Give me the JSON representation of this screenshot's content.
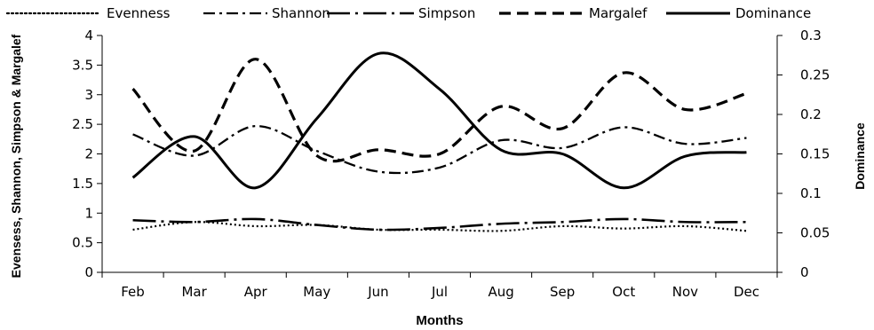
{
  "chart_data": {
    "type": "line",
    "xlabel": "Months",
    "ylabel_left": "Evensess, Shannon, Simpson & Margalef",
    "ylabel_right": "Dominance",
    "categories": [
      "Feb",
      "Mar",
      "Apr",
      "May",
      "Jun",
      "Jul",
      "Aug",
      "Sep",
      "Oct",
      "Nov",
      "Dec"
    ],
    "ylim_left": [
      0,
      4
    ],
    "ylim_right": [
      0,
      0.3
    ],
    "yticks_left": [
      "0",
      "0.5",
      "1",
      "1.5",
      "2",
      "2.5",
      "3",
      "3.5",
      "4"
    ],
    "yticks_right": [
      "0",
      "0.05",
      "0.1",
      "0.15",
      "0.2",
      "0.25",
      "0.3"
    ],
    "grid": false,
    "legend_position": "top",
    "series": [
      {
        "name": "Evenness",
        "axis": "left",
        "style": "dotted",
        "values": [
          0.72,
          0.85,
          0.78,
          0.8,
          0.72,
          0.72,
          0.7,
          0.78,
          0.74,
          0.78,
          0.7
        ]
      },
      {
        "name": "Shannon",
        "axis": "left",
        "style": "dash-dot",
        "values": [
          2.33,
          1.97,
          2.47,
          2.05,
          1.7,
          1.77,
          2.23,
          2.1,
          2.45,
          2.17,
          2.27
        ]
      },
      {
        "name": "Simpson",
        "axis": "left",
        "style": "long-dash-dot",
        "values": [
          0.88,
          0.85,
          0.9,
          0.8,
          0.72,
          0.75,
          0.82,
          0.85,
          0.9,
          0.85,
          0.85
        ]
      },
      {
        "name": "Margalef",
        "axis": "left",
        "style": "dashed",
        "values": [
          3.1,
          2.05,
          3.6,
          1.97,
          2.07,
          2.0,
          2.8,
          2.43,
          3.37,
          2.75,
          3.02
        ]
      },
      {
        "name": "Dominance",
        "axis": "right",
        "style": "solid",
        "values": [
          0.12,
          0.172,
          0.107,
          0.195,
          0.277,
          0.232,
          0.155,
          0.15,
          0.107,
          0.147,
          0.152
        ]
      }
    ]
  }
}
